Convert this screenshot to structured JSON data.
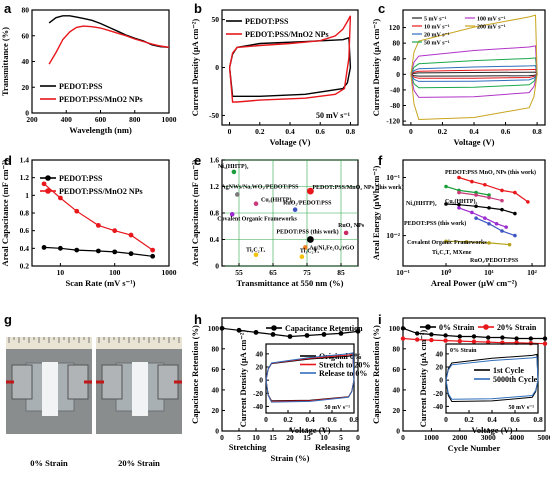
{
  "chart_data": [
    {
      "panel": "a",
      "type": "line",
      "xlabel": "Wavelength (nm)",
      "ylabel": "Transmittance (%)",
      "xlim": [
        200,
        1000
      ],
      "ylim": [
        0,
        80
      ],
      "xticks": [
        200,
        400,
        600,
        800,
        1000
      ],
      "yticks": [
        0,
        20,
        40,
        60,
        80
      ],
      "legend_position": "bottom-right",
      "series": [
        {
          "name": "PEDOT:PSS",
          "color": "#000000",
          "x": [
            300,
            340,
            380,
            420,
            460,
            500,
            550,
            600,
            650,
            700,
            750,
            800,
            850,
            900,
            950,
            1000
          ],
          "y": [
            70,
            74,
            75.5,
            75.5,
            74.5,
            73.5,
            72,
            69.5,
            66.5,
            63.5,
            60.5,
            58,
            56,
            53,
            51.5,
            51
          ]
        },
        {
          "name": "PEDOT:PSS/MnO2 NPs",
          "color": "#e8171c",
          "x": [
            300,
            340,
            380,
            420,
            460,
            500,
            550,
            600,
            650,
            700,
            750,
            800,
            850,
            900,
            950,
            1000
          ],
          "y": [
            38,
            47,
            57,
            63,
            66.5,
            67.5,
            67,
            66,
            64,
            62,
            60,
            57.5,
            55.5,
            53.5,
            52,
            51
          ]
        }
      ]
    },
    {
      "panel": "b",
      "type": "line",
      "xlabel": "Voltage (V)",
      "ylabel": "Current Density (μA cm⁻²)",
      "xlim": [
        -0.05,
        0.85
      ],
      "ylim": [
        -60,
        60
      ],
      "xticks": [
        0.0,
        0.2,
        0.4,
        0.6,
        0.8
      ],
      "yticks": [
        -50,
        0,
        50
      ],
      "annotation": "50 mV s⁻¹",
      "legend_position": "top-left",
      "series": [
        {
          "name": "PEDOT:PSS",
          "color": "#000000",
          "x": [
            0,
            0.02,
            0.05,
            0.2,
            0.5,
            0.75,
            0.79,
            0.8,
            0.78,
            0.75,
            0.5,
            0.2,
            0.05,
            0.02,
            0
          ],
          "y": [
            0,
            14,
            21,
            25,
            27,
            29,
            31,
            0,
            -16,
            -22,
            -28,
            -30,
            -30,
            -30,
            0
          ]
        },
        {
          "name": "PEDOT:PSS/MnO2 NPs",
          "color": "#e8171c",
          "x": [
            0,
            0.02,
            0.05,
            0.2,
            0.4,
            0.6,
            0.7,
            0.75,
            0.78,
            0.8,
            0.79,
            0.76,
            0.7,
            0.5,
            0.2,
            0.05,
            0.02,
            0
          ],
          "y": [
            0,
            15,
            21,
            23,
            25,
            28,
            33,
            40,
            48,
            54,
            10,
            -22,
            -28,
            -32,
            -34,
            -36,
            -36,
            0
          ]
        }
      ]
    },
    {
      "panel": "c",
      "type": "line",
      "xlabel": "Voltage (V)",
      "ylabel": "Current Density (μA cm⁻²)",
      "xlim": [
        -0.05,
        0.85
      ],
      "ylim": [
        -130,
        165
      ],
      "xticks": [
        0.0,
        0.2,
        0.4,
        0.6,
        0.8
      ],
      "yticks": [
        -120,
        -80,
        -40,
        0,
        40,
        80,
        120
      ],
      "legend_position": "top",
      "series": [
        {
          "name": "5 mV s⁻¹",
          "color": "#222222",
          "amp": 4
        },
        {
          "name": "10 mV s⁻¹",
          "color": "#e8171c",
          "amp": 9
        },
        {
          "name": "20 mV s⁻¹",
          "color": "#2f6ebc",
          "amp": 16
        },
        {
          "name": "50 mV s⁻¹",
          "color": "#1aa84c",
          "amp": 30
        },
        {
          "name": "100 mV s⁻¹",
          "color": "#b234c8",
          "amp": 52
        },
        {
          "name": "200 mV s⁻¹",
          "color": "#c8a41e",
          "amp": 95
        }
      ]
    },
    {
      "panel": "d",
      "type": "line",
      "xscale": "log",
      "xlabel": "Scan Rate (mV s⁻¹)",
      "ylabel": "Areal Capacitance (mF cm⁻²)",
      "xlim": [
        3,
        1000
      ],
      "ylim": [
        0.2,
        1.4
      ],
      "xticks": [
        10,
        100,
        1000
      ],
      "yticks": [
        0.2,
        0.4,
        0.6,
        0.8,
        1.0,
        1.2,
        1.4
      ],
      "legend_position": "top-right",
      "series": [
        {
          "name": "PEDOT:PSS",
          "color": "#000000",
          "x": [
            5,
            10,
            20,
            50,
            100,
            200,
            500
          ],
          "y": [
            0.41,
            0.4,
            0.38,
            0.37,
            0.36,
            0.34,
            0.31
          ]
        },
        {
          "name": "PEDOT:PSS/MnO2 NPs",
          "color": "#e8171c",
          "x": [
            5,
            10,
            20,
            50,
            100,
            200,
            500
          ],
          "y": [
            1.13,
            0.97,
            0.82,
            0.66,
            0.6,
            0.55,
            0.38
          ]
        }
      ]
    },
    {
      "panel": "e",
      "type": "scatter",
      "xlabel": "Transmittance at 550 nm (%)",
      "ylabel": "Areal Capacitance (mF cm⁻²)",
      "xlim": [
        50,
        90
      ],
      "ylim": [
        0,
        1.6
      ],
      "xticks": [
        55,
        65,
        75,
        85
      ],
      "yticks": [
        0.0,
        0.4,
        0.8,
        1.2,
        1.6
      ],
      "grid": true,
      "points": [
        {
          "label": "PEDOT:PSS/MnO₂ NPs (this work)",
          "x": 76,
          "y": 1.13,
          "color": "#e8171c"
        },
        {
          "label": "Ni₃(HHTP)₂",
          "x": 53.5,
          "y": 1.42,
          "color": "#1a9e3a"
        },
        {
          "label": "AgNWs/Na,WO₃/PEDOT:PSS",
          "x": 54.5,
          "y": 1.08,
          "color": "#7a7a7a"
        },
        {
          "label": "Cu₃(HHTP)₂",
          "x": 60,
          "y": 0.94,
          "color": "#c93b7a"
        },
        {
          "label": "RuO₂/PEDOT:PSS",
          "x": 71.5,
          "y": 0.85,
          "color": "#3f55c4"
        },
        {
          "label": "Covalent Organic Frameworks",
          "x": 53,
          "y": 0.78,
          "color": "#9c2ad1"
        },
        {
          "label": "RuO₂ NPs",
          "x": 86.5,
          "y": 0.5,
          "color": "#cc2a64"
        },
        {
          "label": "PEDOT:PSS (this work)",
          "x": 76,
          "y": 0.4,
          "color": "#000000"
        },
        {
          "label": "Ag/Ni₃Fe₂O₄/rGO",
          "x": 74.5,
          "y": 0.28,
          "color": "#f07d1b"
        },
        {
          "label": "Ti₃C₂Tₓ",
          "x": 60,
          "y": 0.17,
          "color": "#f4c20d"
        },
        {
          "label": "Ti₃C₂Tₓ",
          "x": 73.5,
          "y": 0.14,
          "color": "#f4c20d"
        }
      ]
    },
    {
      "panel": "f",
      "type": "line",
      "xscale": "log",
      "yscale": "log",
      "xlabel": "Areal Power (μW cm⁻²)",
      "ylabel": "Areal Energy (μWh cm⁻²)",
      "xlim": [
        0.1,
        200
      ],
      "ylim": [
        0.003,
        0.2
      ],
      "xticks": [
        0.1,
        1,
        10,
        100
      ],
      "xticklabels": [
        "10⁻¹",
        "10⁰",
        "10¹",
        "10²"
      ],
      "yticks": [
        0.01,
        0.1
      ],
      "yticklabels": [
        "10⁻²",
        "10⁻¹"
      ],
      "series": [
        {
          "name": "PEDOT:PSS MnO₂ NPs (this work)",
          "color": "#e8171c",
          "x": [
            2,
            4,
            8,
            20,
            40,
            80
          ],
          "y": [
            0.1,
            0.085,
            0.075,
            0.06,
            0.055,
            0.038
          ]
        },
        {
          "name": "Ni₃(HHTP)₂",
          "color": "#1a9e3a",
          "x": [
            1,
            2,
            5,
            10
          ],
          "y": [
            0.07,
            0.06,
            0.055,
            0.05
          ]
        },
        {
          "name": "Cu₃(HHTP)₂",
          "color": "#c93b7a",
          "x": [
            2,
            5,
            10,
            20
          ],
          "y": [
            0.055,
            0.05,
            0.045,
            0.04
          ]
        },
        {
          "name": "PEDOT:PSS (this work)",
          "color": "#000000",
          "x": [
            1,
            2,
            5,
            10,
            20,
            40
          ],
          "y": [
            0.035,
            0.034,
            0.032,
            0.03,
            0.028,
            0.024
          ]
        },
        {
          "name": "Covalent Organic Frameworks",
          "color": "#9c2ad1",
          "x": [
            2,
            4,
            8,
            15,
            25
          ],
          "y": [
            0.03,
            0.025,
            0.02,
            0.016,
            0.014
          ]
        },
        {
          "name": "RuO₂/PEDOT:PSS",
          "color": "#3f55c4",
          "x": [
            5,
            10,
            20,
            40
          ],
          "y": [
            0.02,
            0.016,
            0.012,
            0.01
          ]
        },
        {
          "name": "Ti₃C₂Tₓ MXene",
          "color": "#b6a21a",
          "x": [
            1,
            3,
            10,
            30
          ],
          "y": [
            0.008,
            0.0078,
            0.0075,
            0.007
          ]
        }
      ]
    },
    {
      "panel": "h",
      "type": "line",
      "xlabel": "Strain (%)",
      "ylabel": "Capacitance Retention (%)",
      "ylim": [
        0,
        110
      ],
      "yticks": [
        0,
        20,
        40,
        60,
        80,
        100
      ],
      "categories": [
        "0",
        "5",
        "10",
        "15",
        "20",
        "15",
        "10",
        "5",
        "0"
      ],
      "sublabels": [
        "Stretching",
        "Releasing"
      ],
      "series": [
        {
          "name": "Capacitance Retention",
          "color": "#000000",
          "values": [
            100,
            98,
            96,
            94,
            92,
            93,
            94,
            95,
            97
          ]
        }
      ],
      "inset": {
        "xlabel": "Voltage (V)",
        "ylabel": "Current Density (μA cm⁻²)",
        "xlim": [
          0.0,
          0.8
        ],
        "ylim": [
          -50,
          55
        ],
        "xticks": [
          0.0,
          0.2,
          0.4,
          0.6,
          0.8
        ],
        "yticks": [
          -40,
          -20,
          0,
          20,
          40
        ],
        "annotation": "50 mV s⁻¹",
        "series": [
          {
            "name": "Original 0%",
            "color": "#000000"
          },
          {
            "name": "Stretch to 20%",
            "color": "#e8171c"
          },
          {
            "name": "Release to 0%",
            "color": "#2f6ebc"
          }
        ]
      }
    },
    {
      "panel": "i",
      "type": "line",
      "xlabel": "Cycle Number",
      "ylabel": "Capacitance Retention (%)",
      "xlim": [
        0,
        5000
      ],
      "ylim": [
        0,
        110
      ],
      "xticks": [
        0,
        1000,
        2000,
        3000,
        4000,
        5000
      ],
      "yticks": [
        0,
        20,
        40,
        60,
        80,
        100
      ],
      "legend_position": "top",
      "series": [
        {
          "name": "0% Strain",
          "color": "#000000",
          "x": [
            0,
            500,
            1000,
            1500,
            2000,
            2500,
            3000,
            3500,
            4000,
            4500,
            5000
          ],
          "y": [
            100,
            95,
            94,
            93,
            92,
            92,
            91,
            91,
            90,
            90,
            90
          ]
        },
        {
          "name": "20% Strain",
          "color": "#e8171c",
          "x": [
            0,
            500,
            1000,
            1500,
            2000,
            2500,
            3000,
            3500,
            4000,
            4500,
            5000
          ],
          "y": [
            90,
            89,
            88.5,
            88,
            87.5,
            87,
            86.5,
            86,
            86,
            85.5,
            85
          ]
        }
      ],
      "inset": {
        "xlabel": "Voltage (V)",
        "ylabel": "Current Density (μA cm⁻²)",
        "xlim": [
          0.0,
          0.8
        ],
        "ylim": [
          -50,
          55
        ],
        "xticks": [
          0.0,
          0.2,
          0.4,
          0.6,
          0.8
        ],
        "yticks": [
          -40,
          -20,
          0,
          20,
          40
        ],
        "label_top": "0% Strain",
        "annotation": "50 mV s⁻¹",
        "series": [
          {
            "name": "1st Cycle",
            "color": "#000000"
          },
          {
            "name": "5000th Cycle",
            "color": "#2f6ebc"
          }
        ]
      }
    }
  ],
  "panels": [
    "a",
    "b",
    "c",
    "d",
    "e",
    "f",
    "g",
    "h",
    "i"
  ],
  "photo_g": {
    "left_caption": "0% Strain",
    "right_caption": "20% Strain"
  }
}
